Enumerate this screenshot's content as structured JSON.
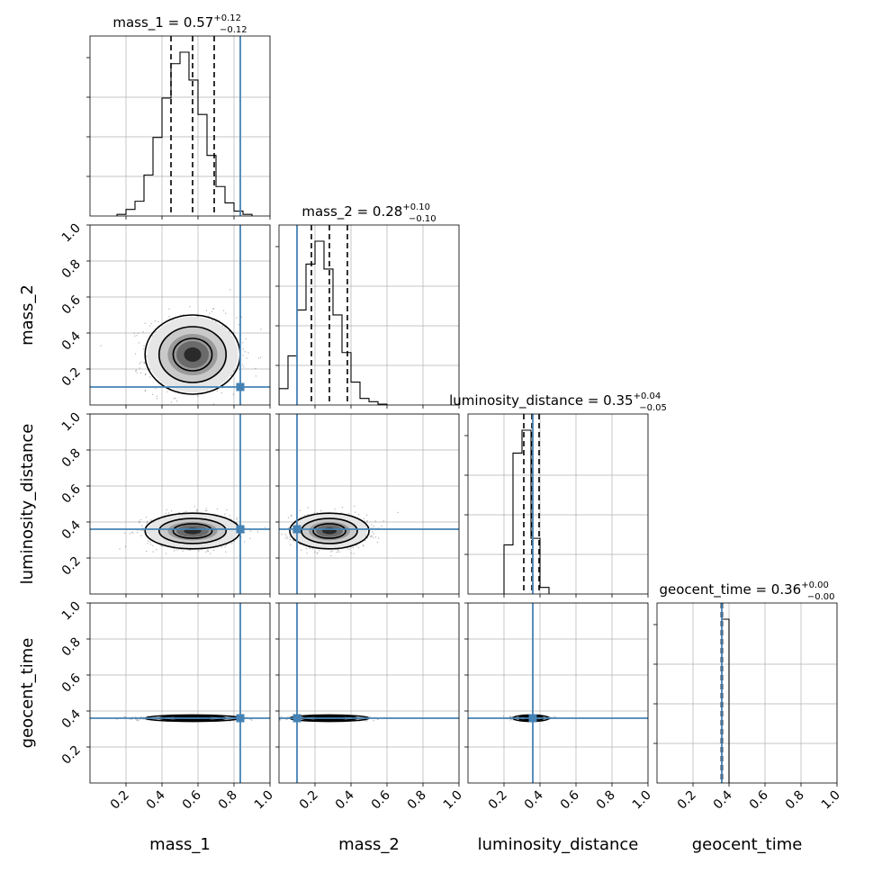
{
  "chart_data": {
    "type": "corner",
    "parameters": [
      "mass_1",
      "mass_2",
      "luminosity_distance",
      "geocent_time"
    ],
    "axis_ticks": [
      "0.2",
      "0.4",
      "0.6",
      "0.8",
      "1.0"
    ],
    "axis_range": [
      0,
      1
    ],
    "grid": true,
    "truth_color": "#4682b4",
    "truth_values": [
      0.835,
      0.1,
      0.36,
      0.36
    ],
    "summaries": [
      {
        "param": "mass_1",
        "prefix": "mass_1 = ",
        "median": "0.57",
        "plus": "+0.12",
        "minus": "−0.12"
      },
      {
        "param": "mass_2",
        "prefix": "mass_2 = ",
        "median": "0.28",
        "plus": "+0.10",
        "minus": "−0.10"
      },
      {
        "param": "luminosity_distance",
        "prefix": "luminosity_distance = ",
        "median": "0.35",
        "plus": "+0.04",
        "minus": "−0.05"
      },
      {
        "param": "geocent_time",
        "prefix": "geocent_time = ",
        "median": "0.36",
        "plus": "+0.00",
        "minus": "−0.00"
      }
    ],
    "quantile_lines": [
      [
        0.45,
        0.57,
        0.69
      ],
      [
        0.18,
        0.28,
        0.38
      ],
      [
        0.31,
        0.355,
        0.395
      ],
      [
        0.357,
        0.36,
        0.363
      ]
    ],
    "histograms": [
      {
        "param": "mass_1",
        "bin_width": 0.05,
        "bins_start": 0.15,
        "counts": [
          0.01,
          0.04,
          0.09,
          0.25,
          0.48,
          0.72,
          0.93,
          1.0,
          0.83,
          0.62,
          0.37,
          0.18,
          0.08,
          0.03,
          0.01
        ]
      },
      {
        "param": "mass_2",
        "bin_width": 0.05,
        "bins_start": 0.0,
        "counts": [
          0.1,
          0.3,
          0.58,
          0.86,
          1.0,
          0.83,
          0.55,
          0.32,
          0.14,
          0.04,
          0.02,
          0.005
        ]
      },
      {
        "param": "luminosity_distance",
        "bin_width": 0.05,
        "bins_start": 0.2,
        "counts": [
          0.3,
          0.86,
          1.0,
          0.34,
          0.04
        ]
      },
      {
        "param": "geocent_time",
        "bin_width": 0.02,
        "bins_start": 0.36,
        "counts": [
          1.0,
          1.0
        ]
      }
    ],
    "pair_posteriors": [
      {
        "x": "mass_1",
        "y": "mass_2",
        "mean": [
          0.57,
          0.28
        ],
        "sigma": [
          0.12,
          0.1
        ]
      },
      {
        "x": "mass_1",
        "y": "luminosity_distance",
        "mean": [
          0.57,
          0.35
        ],
        "sigma": [
          0.12,
          0.045
        ]
      },
      {
        "x": "mass_2",
        "y": "luminosity_distance",
        "mean": [
          0.28,
          0.35
        ],
        "sigma": [
          0.1,
          0.045
        ]
      },
      {
        "x": "mass_1",
        "y": "geocent_time",
        "mean": [
          0.57,
          0.36
        ],
        "sigma": [
          0.12,
          0.005
        ]
      },
      {
        "x": "mass_2",
        "y": "geocent_time",
        "mean": [
          0.28,
          0.36
        ],
        "sigma": [
          0.1,
          0.005
        ]
      },
      {
        "x": "luminosity_distance",
        "y": "geocent_time",
        "mean": [
          0.35,
          0.36
        ],
        "sigma": [
          0.045,
          0.005
        ]
      }
    ]
  }
}
